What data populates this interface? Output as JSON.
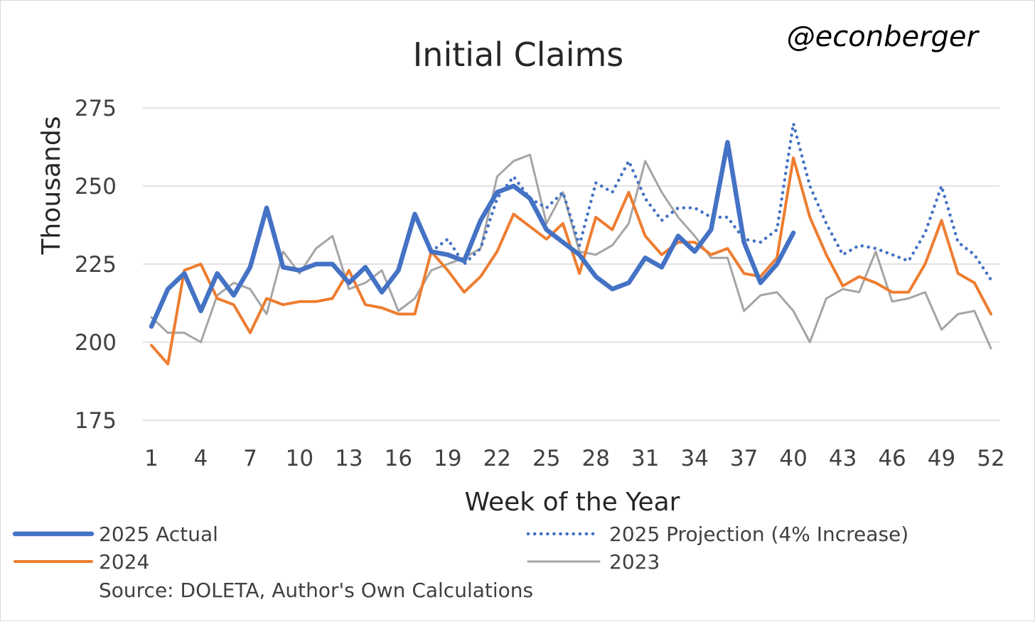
{
  "chart_data": {
    "type": "line",
    "title": "Initial Claims",
    "watermark": "@econberger",
    "xlabel": "Week of the Year",
    "ylabel": "Thousands",
    "source": "Source: DOLETA, Author's Own Calculations",
    "xlim": [
      1,
      52
    ],
    "ylim": [
      175,
      275
    ],
    "x_ticks": [
      1,
      4,
      7,
      10,
      13,
      16,
      19,
      22,
      25,
      28,
      31,
      34,
      37,
      40,
      43,
      46,
      49,
      52
    ],
    "y_ticks": [
      175,
      200,
      225,
      250,
      275
    ],
    "grid": "horizontal",
    "legend_position": "bottom",
    "series": [
      {
        "name": "2025 Actual",
        "color": "#4472c4",
        "style": "solid-thick",
        "x": [
          1,
          2,
          3,
          4,
          5,
          6,
          7,
          8,
          9,
          10,
          11,
          12,
          13,
          14,
          15,
          16,
          17,
          18,
          19,
          20,
          21,
          22,
          23,
          24,
          25,
          26,
          27,
          28,
          29,
          30,
          31,
          32,
          33,
          34,
          35,
          36,
          37,
          38,
          39,
          40
        ],
        "values": [
          205,
          217,
          222,
          210,
          222,
          215,
          224,
          243,
          224,
          223,
          225,
          225,
          219,
          224,
          216,
          223,
          241,
          229,
          228,
          226,
          239,
          248,
          250,
          246,
          236,
          232,
          228,
          221,
          217,
          219,
          227,
          224,
          234,
          229,
          236,
          264,
          232,
          219,
          225,
          235
        ]
      },
      {
        "name": "2025 Projection (4% Increase)",
        "color": "#4472c4",
        "style": "dotted",
        "x": [
          18,
          19,
          20,
          21,
          22,
          23,
          24,
          25,
          26,
          27,
          28,
          29,
          30,
          31,
          32,
          33,
          34,
          35,
          36,
          37,
          38,
          39,
          40,
          41,
          42,
          43,
          44,
          45,
          46,
          47,
          48,
          49,
          50,
          51,
          52
        ],
        "values": [
          229,
          233,
          225,
          230,
          246,
          253,
          246,
          243,
          248,
          231,
          251,
          248,
          258,
          246,
          239,
          243,
          243,
          240,
          240,
          233,
          232,
          236,
          270,
          250,
          238,
          228,
          231,
          230,
          228,
          226,
          235,
          250,
          232,
          228,
          220
        ]
      },
      {
        "name": "2024",
        "color": "#ed7d31",
        "style": "solid",
        "x": [
          1,
          2,
          3,
          4,
          5,
          6,
          7,
          8,
          9,
          10,
          11,
          12,
          13,
          14,
          15,
          16,
          17,
          18,
          19,
          20,
          21,
          22,
          23,
          24,
          25,
          26,
          27,
          28,
          29,
          30,
          31,
          32,
          33,
          34,
          35,
          36,
          37,
          38,
          39,
          40,
          41,
          42,
          43,
          44,
          45,
          46,
          47,
          48,
          49,
          50,
          51,
          52
        ],
        "values": [
          199,
          193,
          223,
          225,
          214,
          212,
          203,
          214,
          212,
          213,
          213,
          214,
          223,
          212,
          211,
          209,
          209,
          229,
          223,
          216,
          221,
          229,
          241,
          237,
          233,
          238,
          222,
          240,
          236,
          248,
          234,
          228,
          232,
          232,
          228,
          230,
          222,
          221,
          227,
          259,
          240,
          228,
          218,
          221,
          219,
          216,
          216,
          225,
          239,
          222,
          219,
          209
        ]
      },
      {
        "name": "2023",
        "color": "#a5a5a5",
        "style": "solid",
        "x": [
          1,
          2,
          3,
          4,
          5,
          6,
          7,
          8,
          9,
          10,
          11,
          12,
          13,
          14,
          15,
          16,
          17,
          18,
          19,
          20,
          21,
          22,
          23,
          24,
          25,
          26,
          27,
          28,
          29,
          30,
          31,
          32,
          33,
          34,
          35,
          36,
          37,
          38,
          39,
          40,
          41,
          42,
          43,
          44,
          45,
          46,
          47,
          48,
          49,
          50,
          51,
          52
        ],
        "values": [
          208,
          203,
          203,
          200,
          215,
          219,
          217,
          209,
          229,
          222,
          230,
          234,
          217,
          219,
          223,
          210,
          214,
          223,
          225,
          227,
          230,
          253,
          258,
          260,
          238,
          248,
          229,
          228,
          231,
          238,
          258,
          248,
          240,
          234,
          227,
          227,
          210,
          215,
          216,
          210,
          200,
          214,
          217,
          216,
          229,
          213,
          214,
          216,
          204,
          209,
          210,
          198
        ]
      }
    ]
  }
}
